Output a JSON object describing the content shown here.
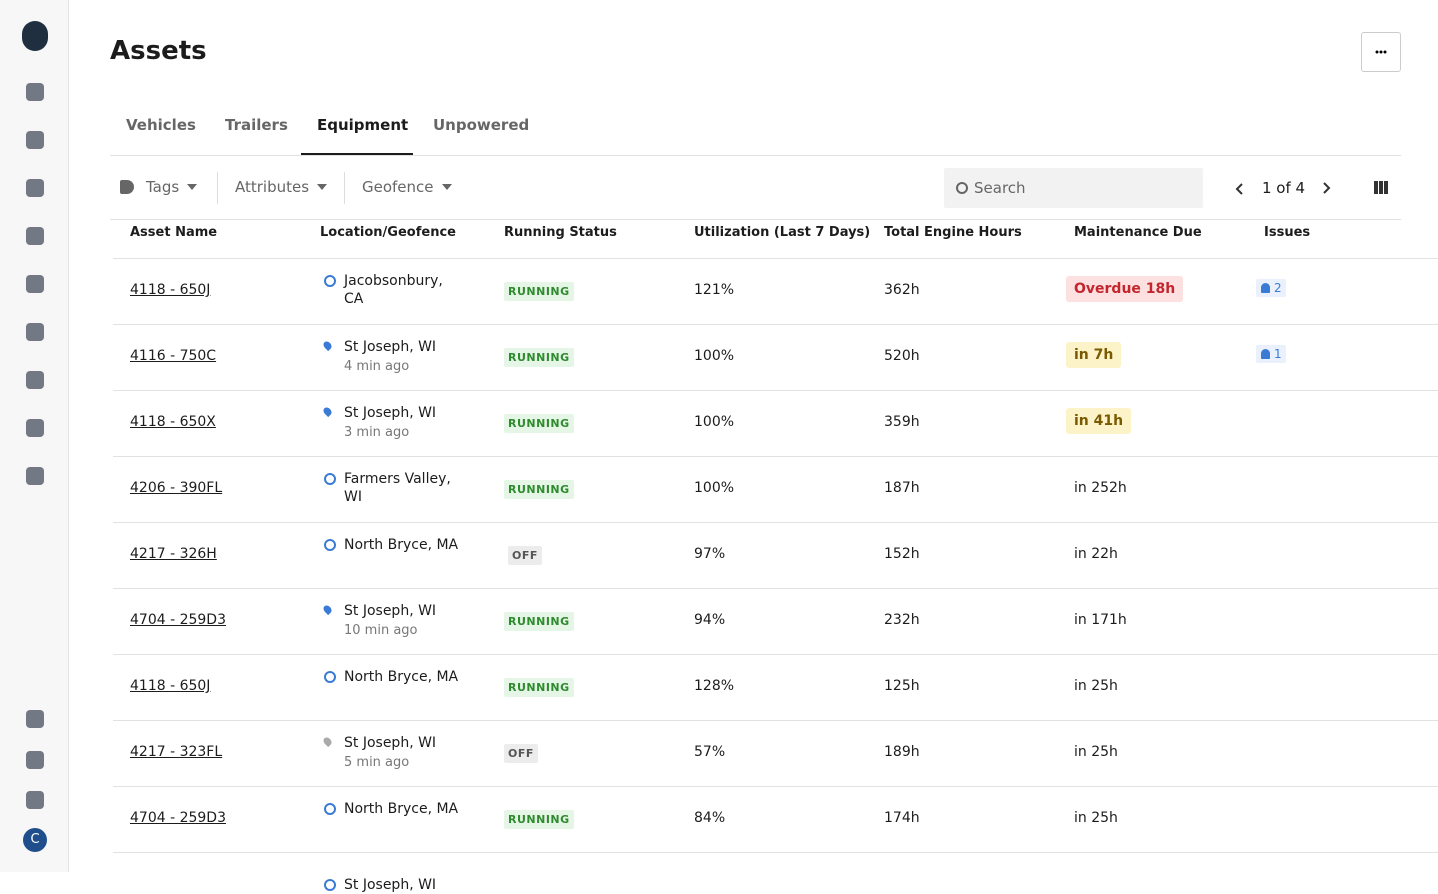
{
  "header": {
    "title": "Assets"
  },
  "tabs": [
    "Vehicles",
    "Trailers",
    "Equipment",
    "Unpowered"
  ],
  "filters": [
    "Tags",
    "Attributes",
    "Geofence"
  ],
  "search_placeholder": "Search",
  "pagination": "1 of 4",
  "user_initial": "C",
  "table": {
    "columns": [
      "Asset Name",
      "Location/Geofence",
      "Running Status",
      "Utilization (Last 7 Days)",
      "Total Engine Hours",
      "Maintenance Due",
      "Issues"
    ],
    "rows": [
      {
        "asset": "4118 - 650J",
        "location": "Jacobsonbury, CA",
        "location_type": "geofence",
        "status": "RUNNING",
        "status_color": "green",
        "utilization": "121%",
        "engine_hours": "362h",
        "maintenance": "Overdue 18h",
        "maintenance_badge": "red",
        "issues": 2
      },
      {
        "asset": "4116 - 750C",
        "location": "St Joseph, WI",
        "time": "4 min ago",
        "location_type": "pin",
        "status": "RUNNING",
        "status_color": "green",
        "utilization": "100%",
        "engine_hours": "520h",
        "maintenance": "in 7h",
        "maintenance_badge": "yellow",
        "issues": 1
      },
      {
        "asset": "4118 - 650X",
        "location": "St Joseph, WI",
        "time": "3 min ago",
        "location_type": "pin",
        "status": "RUNNING",
        "status_color": "green",
        "utilization": "100%",
        "engine_hours": "359h",
        "maintenance": "in 41h",
        "maintenance_badge": "yellow"
      },
      {
        "asset": "4206 - 390FL",
        "location": "Farmers Valley, WI",
        "location_type": "geofence",
        "status": "RUNNING",
        "status_color": "green",
        "utilization": "100%",
        "engine_hours": "187h",
        "maintenance": "in 252h"
      },
      {
        "asset": "4217 - 326H",
        "location": "North Bryce, MA",
        "location_type": "geofence",
        "status": "OFF",
        "status_color": "gray",
        "utilization": "97%",
        "engine_hours": "152h",
        "maintenance": "in 22h"
      },
      {
        "asset": "4704 - 259D3",
        "location": "St Joseph, WI",
        "time": "10 min ago",
        "location_type": "pin",
        "status": "RUNNING",
        "status_color": "green",
        "utilization": "94%",
        "engine_hours": "232h",
        "maintenance": "in 171h"
      },
      {
        "asset": "4118 - 650J",
        "location": "North Bryce, MA",
        "location_type": "geofence",
        "status": "RUNNING",
        "status_color": "green",
        "utilization": "128%",
        "engine_hours": "125h",
        "maintenance": "in 25h"
      },
      {
        "asset": "4217 - 323FL",
        "location": "St Joseph, WI",
        "time": "5 min ago",
        "location_type": "pin-gray",
        "status": "OFF",
        "status_color": "gray",
        "utilization": "57%",
        "engine_hours": "189h",
        "maintenance": "in 25h"
      },
      {
        "asset": "4704 - 259D3",
        "location": "North Bryce, MA",
        "location_type": "geofence",
        "status": "RUNNING",
        "status_color": "green",
        "utilization": "84%",
        "engine_hours": "174h",
        "maintenance": "in 25h"
      },
      {
        "location": "St Joseph, WI",
        "location_type": "geofence"
      }
    ]
  }
}
